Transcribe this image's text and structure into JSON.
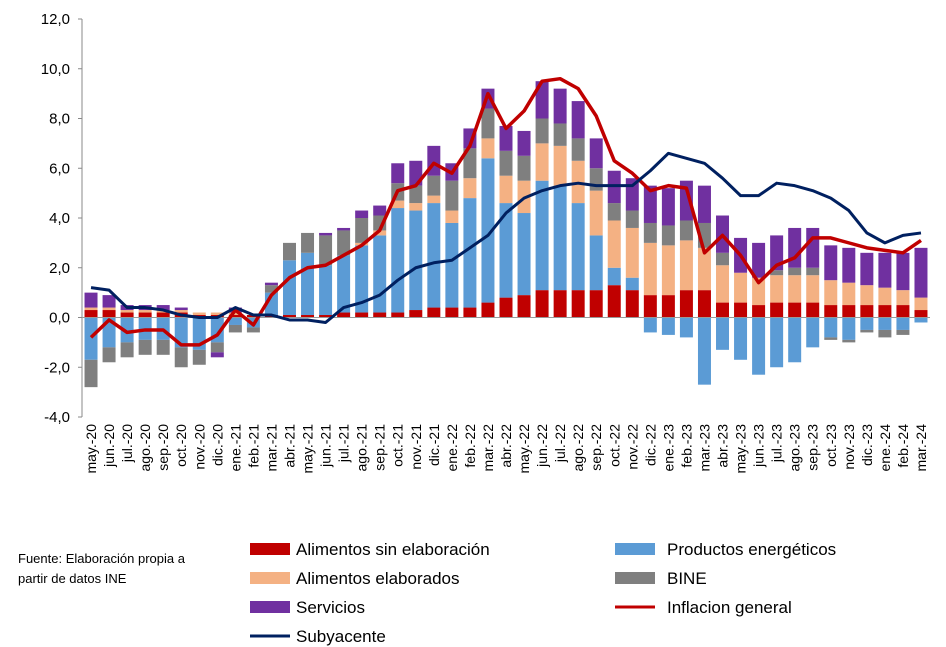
{
  "chart_data": {
    "type": "bar",
    "categories": [
      "may.-20",
      "jun.-20",
      "jul.-20",
      "ago.-20",
      "sep.-20",
      "oct.-20",
      "nov.-20",
      "dic.-20",
      "ene.-21",
      "feb.-21",
      "mar.-21",
      "abr.-21",
      "may.-21",
      "jun.-21",
      "jul.-21",
      "ago.-21",
      "sep.-21",
      "oct.-21",
      "nov.-21",
      "dic.-21",
      "ene.-22",
      "feb.-22",
      "mar.-22",
      "abr.-22",
      "may.-22",
      "jun.-22",
      "jul.-22",
      "ago.-22",
      "sep.-22",
      "oct.-22",
      "nov.-22",
      "dic.-22",
      "ene.-23",
      "feb.-23",
      "mar.-23",
      "abr.-23",
      "may.-23",
      "jun.-23",
      "jul.-23",
      "ago.-23",
      "sep.-23",
      "oct.-23",
      "nov.-23",
      "dic.-23",
      "ene.-24",
      "feb.-24",
      "mar.-24"
    ],
    "series": [
      {
        "name": "Alimentos sin elaboración",
        "type": "bar",
        "color": "#c00000",
        "values": [
          0.3,
          0.3,
          0.2,
          0.2,
          0.2,
          0.2,
          0.1,
          0.1,
          0.1,
          0.1,
          0.1,
          0.1,
          0.1,
          0.1,
          0.2,
          0.2,
          0.2,
          0.2,
          0.3,
          0.4,
          0.4,
          0.4,
          0.6,
          0.8,
          0.9,
          1.1,
          1.1,
          1.1,
          1.1,
          1.3,
          1.1,
          0.9,
          0.9,
          1.1,
          1.1,
          0.6,
          0.6,
          0.5,
          0.6,
          0.6,
          0.6,
          0.5,
          0.5,
          0.5,
          0.5,
          0.5,
          0.3
        ]
      },
      {
        "name": "Productos energéticos",
        "type": "bar",
        "color": "#5b9bd5",
        "values": [
          -1.7,
          -1.2,
          -1.0,
          -0.9,
          -0.9,
          -1.2,
          -1.3,
          -1.0,
          -0.3,
          -0.4,
          0.9,
          2.2,
          2.5,
          2.0,
          2.3,
          2.7,
          3.1,
          4.2,
          4.0,
          4.2,
          3.4,
          4.4,
          5.8,
          3.8,
          3.3,
          4.4,
          4.2,
          3.5,
          2.2,
          0.7,
          0.5,
          -0.6,
          -0.7,
          -0.8,
          -2.7,
          -1.3,
          -1.7,
          -2.3,
          -2.0,
          -1.8,
          -1.2,
          -0.8,
          -0.9,
          -0.5,
          -0.5,
          -0.5,
          -0.2
        ]
      },
      {
        "name": "Alimentos elaborados",
        "type": "bar",
        "color": "#f4b183",
        "values": [
          0.1,
          0.1,
          0.1,
          0.1,
          0.1,
          0.1,
          0.1,
          0.1,
          0.1,
          0.0,
          0.0,
          0.0,
          0.0,
          0.0,
          0.0,
          0.1,
          0.2,
          0.3,
          0.3,
          0.3,
          0.5,
          0.8,
          0.8,
          1.1,
          1.3,
          1.5,
          1.6,
          1.7,
          1.8,
          1.9,
          2.0,
          2.1,
          2.0,
          2.0,
          1.7,
          1.5,
          1.2,
          1.1,
          1.1,
          1.1,
          1.1,
          1.0,
          0.9,
          0.8,
          0.7,
          0.6,
          0.5
        ]
      },
      {
        "name": "BINE",
        "type": "bar",
        "color": "#7f7f7f",
        "values": [
          -1.1,
          -0.6,
          -0.6,
          -0.6,
          -0.6,
          -0.8,
          -0.6,
          -0.4,
          -0.3,
          -0.2,
          0.3,
          0.7,
          0.8,
          1.2,
          1.0,
          1.0,
          0.6,
          0.7,
          0.7,
          0.8,
          1.2,
          1.2,
          1.2,
          1.0,
          1.0,
          1.0,
          0.9,
          0.9,
          0.9,
          0.7,
          0.7,
          0.8,
          0.8,
          0.8,
          1.0,
          0.5,
          0.0,
          0.0,
          0.2,
          0.3,
          0.3,
          -0.1,
          -0.1,
          -0.1,
          -0.3,
          -0.2,
          0.0
        ]
      },
      {
        "name": "Servicios",
        "type": "bar",
        "color": "#7030a0",
        "values": [
          0.6,
          0.5,
          0.2,
          0.2,
          0.2,
          0.1,
          0.0,
          -0.2,
          0.2,
          0.0,
          0.1,
          0.0,
          0.0,
          0.1,
          0.1,
          0.3,
          0.4,
          0.8,
          1.0,
          1.2,
          0.7,
          0.8,
          0.8,
          1.0,
          1.0,
          1.5,
          1.4,
          1.5,
          1.2,
          1.3,
          1.3,
          1.5,
          1.5,
          1.6,
          1.5,
          1.5,
          1.4,
          1.4,
          1.4,
          1.6,
          1.6,
          1.4,
          1.4,
          1.3,
          1.4,
          1.5,
          2.0
        ]
      },
      {
        "name": "Inflacion general",
        "type": "line",
        "color": "#c00000",
        "values": [
          -0.8,
          -0.1,
          -0.6,
          -0.5,
          -0.5,
          -1.1,
          -1.1,
          -0.7,
          0.3,
          -0.3,
          0.9,
          1.6,
          2.0,
          2.1,
          2.5,
          2.9,
          3.5,
          5.1,
          5.3,
          6.2,
          5.8,
          6.9,
          9.0,
          7.6,
          8.3,
          9.5,
          9.6,
          9.2,
          8.1,
          6.3,
          5.8,
          5.1,
          5.3,
          5.2,
          2.6,
          3.3,
          2.5,
          1.4,
          2.1,
          2.4,
          3.2,
          3.2,
          3.0,
          2.8,
          2.7,
          2.6,
          3.1
        ]
      },
      {
        "name": "Subyacente",
        "type": "line",
        "color": "#002060",
        "values": [
          1.2,
          1.1,
          0.4,
          0.4,
          0.3,
          0.1,
          0.0,
          0.0,
          0.4,
          0.1,
          0.1,
          -0.1,
          -0.1,
          -0.2,
          0.4,
          0.6,
          0.9,
          1.5,
          2.0,
          2.2,
          2.3,
          2.8,
          3.3,
          4.2,
          4.8,
          5.1,
          5.3,
          5.4,
          5.3,
          5.3,
          5.3,
          5.9,
          6.6,
          6.4,
          6.2,
          5.6,
          4.9,
          4.9,
          5.4,
          5.3,
          5.1,
          4.8,
          4.3,
          3.4,
          3.0,
          3.3,
          3.4
        ]
      }
    ],
    "ylim": [
      -4,
      12
    ],
    "yticks": [
      {
        "value": -4,
        "label": "-4,0"
      },
      {
        "value": -2,
        "label": "-2,0"
      },
      {
        "value": 0,
        "label": "0,0"
      },
      {
        "value": 2,
        "label": "2,0"
      },
      {
        "value": 4,
        "label": "4,0"
      },
      {
        "value": 6,
        "label": "6,0"
      },
      {
        "value": 8,
        "label": "8,0"
      },
      {
        "value": 10,
        "label": "10,0"
      },
      {
        "value": 12,
        "label": "12,0"
      }
    ],
    "grid": false,
    "source": "Fuente: Elaboración propia a partir de datos INE"
  }
}
